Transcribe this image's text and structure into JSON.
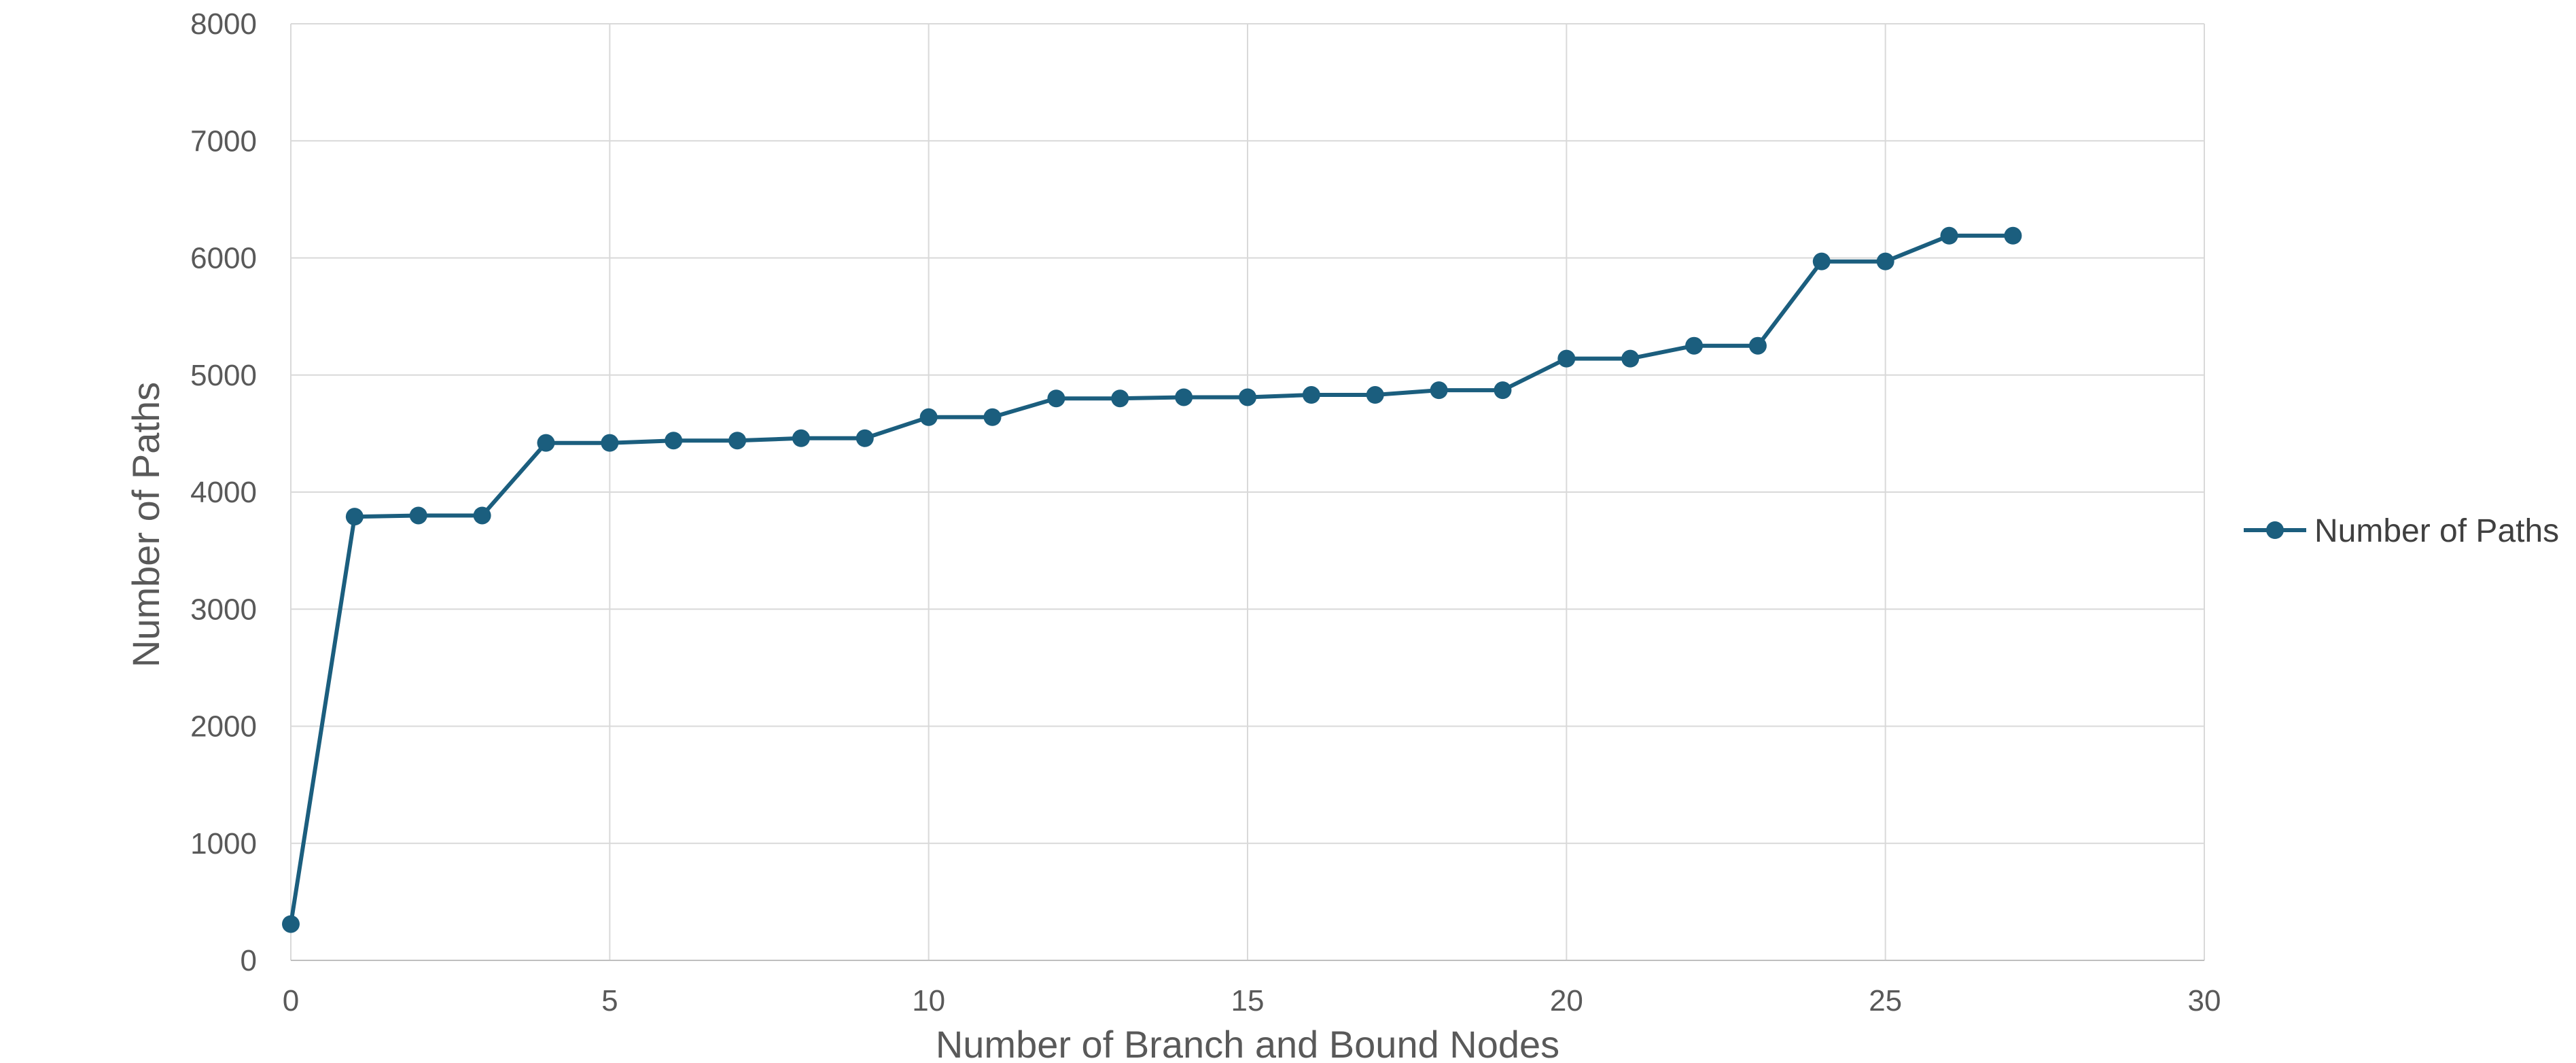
{
  "chart_data": {
    "type": "line",
    "title": "",
    "xlabel": "Number of Branch and Bound Nodes",
    "ylabel": "Number of Paths",
    "xlim": [
      0,
      30
    ],
    "ylim": [
      0,
      8000
    ],
    "xticks": [
      "0",
      "5",
      "10",
      "15",
      "20",
      "25",
      "30"
    ],
    "yticks": [
      "0",
      "1000",
      "2000",
      "3000",
      "4000",
      "5000",
      "6000",
      "7000",
      "8000"
    ],
    "grid": true,
    "legend_position": "right",
    "series": [
      {
        "name": "Number of Paths",
        "color": "#1b5e7e",
        "x": [
          0,
          1,
          2,
          3,
          4,
          5,
          6,
          7,
          8,
          9,
          10,
          11,
          12,
          13,
          14,
          15,
          16,
          17,
          18,
          19,
          20,
          21,
          22,
          23,
          24,
          25,
          26,
          27
        ],
        "y": [
          310,
          3790,
          3800,
          3800,
          4420,
          4420,
          4440,
          4440,
          4460,
          4460,
          4640,
          4640,
          4800,
          4800,
          4810,
          4810,
          4830,
          4830,
          4870,
          4870,
          5140,
          5140,
          5250,
          5250,
          5970,
          5970,
          6190,
          6190
        ]
      }
    ]
  }
}
